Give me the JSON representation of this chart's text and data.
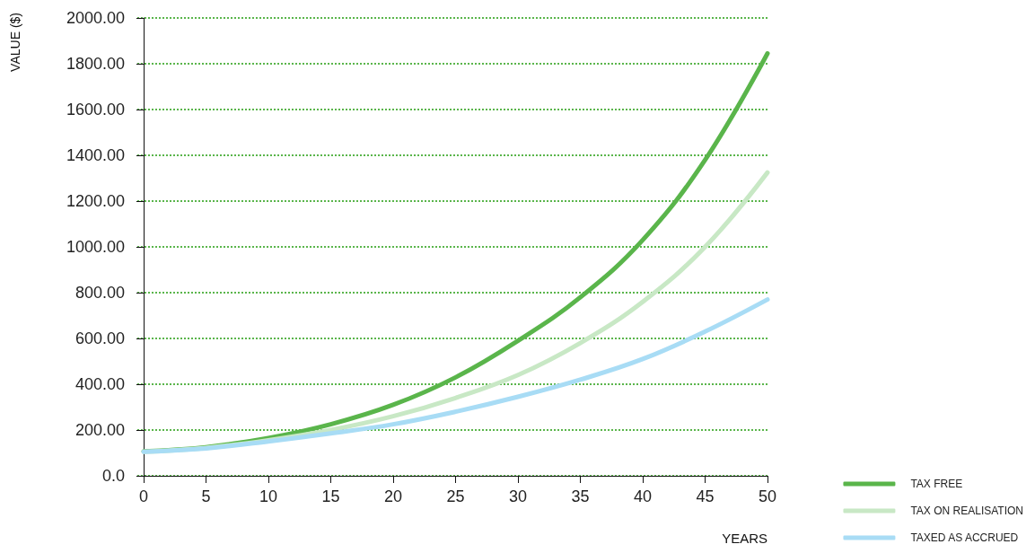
{
  "chart_data": {
    "type": "line",
    "xlabel": "YEARS",
    "ylabel": "VALUE ($)",
    "x": [
      0,
      5,
      10,
      15,
      20,
      25,
      30,
      35,
      40,
      45,
      50
    ],
    "series": [
      {
        "name": "TAX FREE",
        "color": "#5ab54b",
        "values": [
          107,
          125,
          165,
          225,
          310,
          430,
          590,
          780,
          1030,
          1380,
          1845
        ]
      },
      {
        "name": "TAX ON REALISATION",
        "color": "#c8e8c5",
        "values": [
          105,
          122,
          155,
          200,
          260,
          340,
          440,
          580,
          760,
          1000,
          1325
        ]
      },
      {
        "name": "TAXED AS ACCRUED",
        "color": "#a8dcf5",
        "values": [
          105,
          120,
          150,
          185,
          225,
          280,
          345,
          420,
          510,
          630,
          770
        ]
      }
    ],
    "xlim": [
      -0.5,
      50
    ],
    "xticks": [
      0,
      5,
      10,
      15,
      20,
      25,
      30,
      35,
      40,
      45,
      50
    ],
    "ylim": [
      0,
      2000
    ],
    "yticks": [
      {
        "value": 0,
        "label": "0.0"
      },
      {
        "value": 200,
        "label": "200.00"
      },
      {
        "value": 400,
        "label": "400.00"
      },
      {
        "value": 600,
        "label": "600.00"
      },
      {
        "value": 800,
        "label": "800.00"
      },
      {
        "value": 1000,
        "label": "1000.00"
      },
      {
        "value": 1200,
        "label": "1200.00"
      },
      {
        "value": 1400,
        "label": "1400.00"
      },
      {
        "value": 1600,
        "label": "1600.00"
      },
      {
        "value": 1800,
        "label": "1800.00"
      },
      {
        "value": 2000,
        "label": "2000.00"
      }
    ],
    "grid": "y",
    "legend": "bottom right",
    "marker": "none"
  }
}
